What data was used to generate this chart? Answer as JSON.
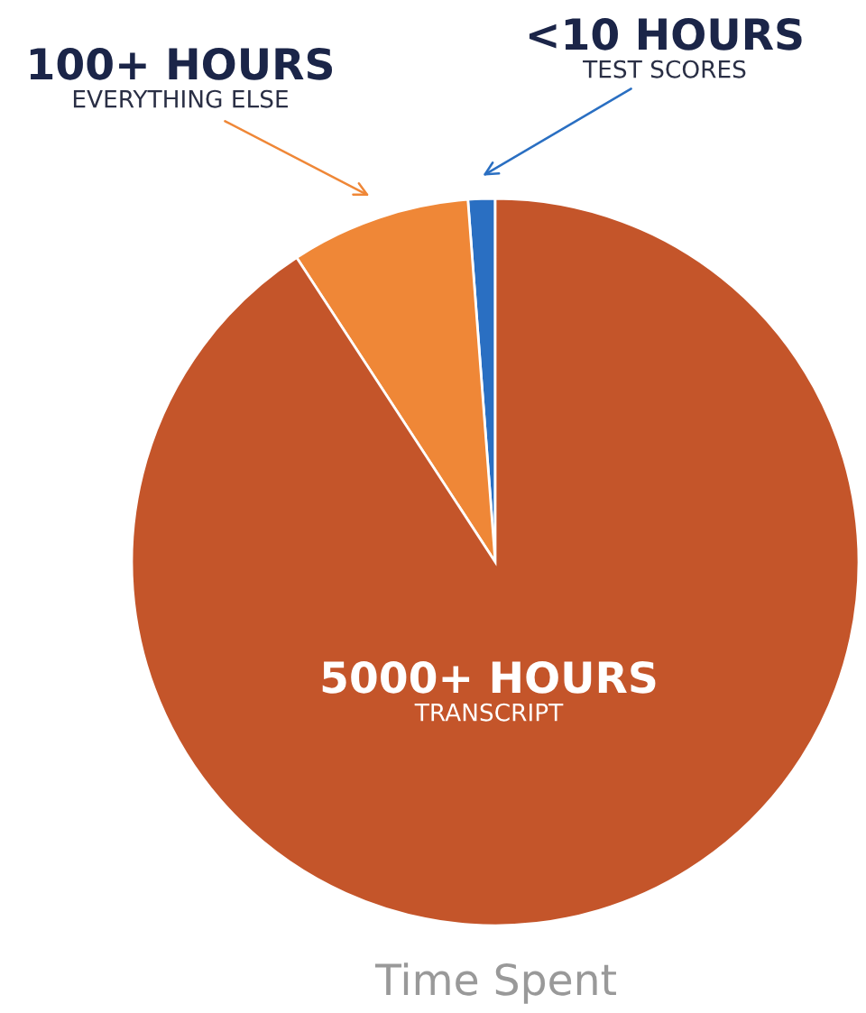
{
  "chart_data": {
    "type": "pie",
    "title": "Time Spent",
    "categories": [
      "TEST SCORES",
      "EVERYTHING ELSE",
      "TRANSCRIPT"
    ],
    "values": [
      1.2,
      8.0,
      90.8
    ],
    "value_labels": [
      "<10 HOURS",
      "100+ HOURS",
      "5000+ HOURS"
    ],
    "colors": [
      "#2a6fc2",
      "#ef8737",
      "#c4552a"
    ],
    "legend": false
  }
}
